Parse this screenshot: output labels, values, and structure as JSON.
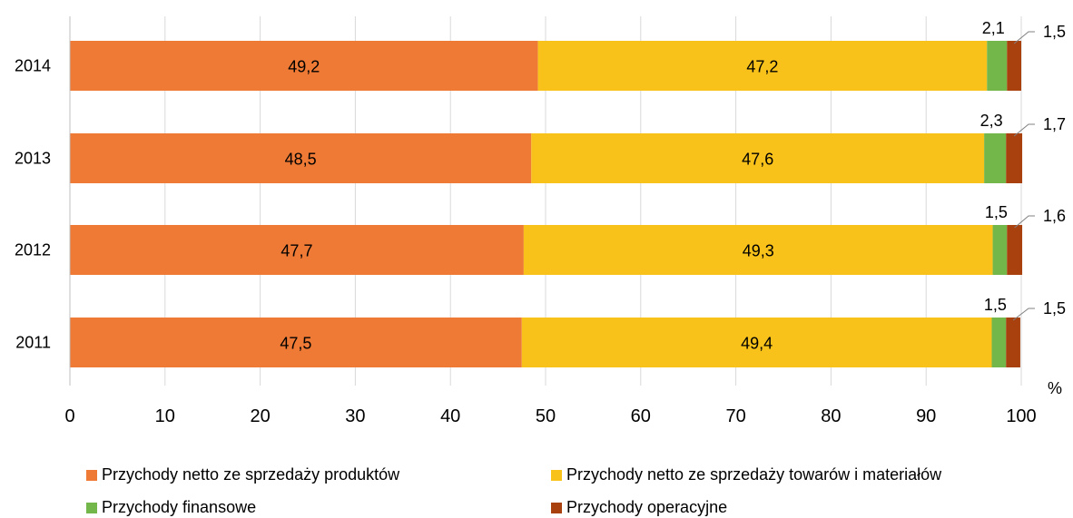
{
  "chart_data": {
    "type": "bar",
    "orientation": "horizontal",
    "stacked": true,
    "categories": [
      "2014",
      "2013",
      "2012",
      "2011"
    ],
    "series": [
      {
        "name": "Przychody netto ze sprzedaży produktów",
        "color": "#ee7a35",
        "values": [
          49.2,
          48.5,
          47.7,
          47.5
        ],
        "labels": [
          "49,2",
          "48,5",
          "47,7",
          "47,5"
        ]
      },
      {
        "name": "Przychody netto ze sprzedaży towarów i materiałów",
        "color": "#f8c21b",
        "values": [
          47.2,
          47.6,
          49.3,
          49.4
        ],
        "labels": [
          "47,2",
          "47,6",
          "49,3",
          "49,4"
        ]
      },
      {
        "name": "Przychody finansowe",
        "color": "#73b64a",
        "values": [
          2.1,
          2.3,
          1.5,
          1.5
        ],
        "labels": [
          "2,1",
          "2,3",
          "1,5",
          "1,5"
        ]
      },
      {
        "name": "Przychody operacyjne",
        "color": "#a8410e",
        "values": [
          1.5,
          1.7,
          1.6,
          1.5
        ],
        "labels": [
          "1,5",
          "1,7",
          "1,6",
          "1,5"
        ]
      }
    ],
    "xlim": [
      0,
      100
    ],
    "xticks": [
      "0",
      "10",
      "20",
      "30",
      "40",
      "50",
      "60",
      "70",
      "80",
      "90",
      "100"
    ],
    "unit_label": "%",
    "grid": true,
    "legend_position": "bottom"
  }
}
